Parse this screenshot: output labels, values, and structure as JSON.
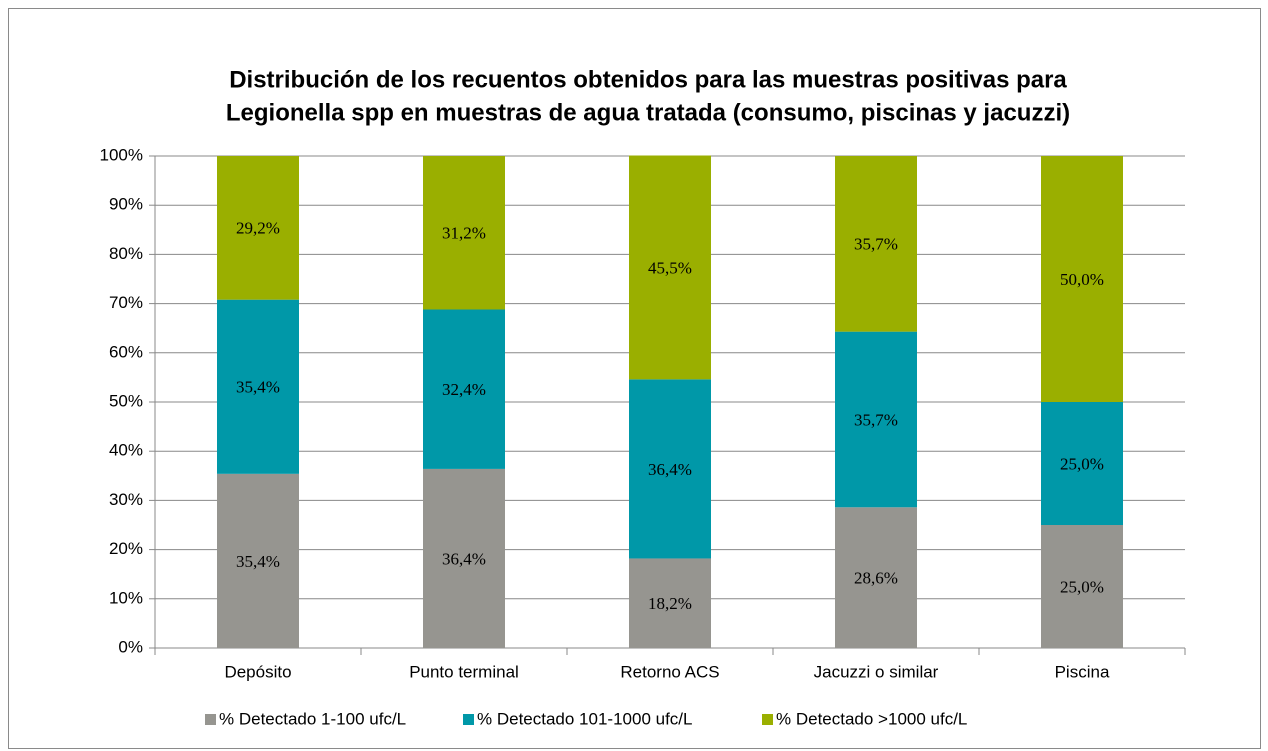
{
  "chart_data": {
    "type": "stacked_bar",
    "title": [
      "Distribución de los recuentos obtenidos para las muestras positivas para",
      "Legionella spp en muestras de agua tratada (consumo, piscinas y jacuzzi)"
    ],
    "categories": [
      "Depósito",
      "Punto terminal",
      "Retorno ACS",
      "Jacuzzi o similar",
      "Piscina"
    ],
    "series": [
      {
        "name": "% Detectado 1-100 ufc/L",
        "color": "#969590",
        "values": [
          35.4,
          36.4,
          18.2,
          28.6,
          25.0
        ],
        "value_labels": [
          "35,4%",
          "36,4%",
          "18,2%",
          "28,6%",
          "25,0%"
        ]
      },
      {
        "name": "% Detectado 101-1000 ufc/L",
        "color": "#0098a8",
        "values": [
          35.4,
          32.4,
          36.4,
          35.7,
          25.0
        ],
        "value_labels": [
          "35,4%",
          "32,4%",
          "36,4%",
          "35,7%",
          "25,0%"
        ]
      },
      {
        "name": "% Detectado >1000 ufc/L",
        "color": "#9aaf00",
        "values": [
          29.2,
          31.2,
          45.5,
          35.7,
          50.0
        ],
        "value_labels": [
          "29,2%",
          "31,2%",
          "45,5%",
          "35,7%",
          "50,0%"
        ]
      }
    ],
    "ylim": [
      0,
      100
    ],
    "yticks": [
      {
        "value": 0,
        "label": "0%"
      },
      {
        "value": 10,
        "label": "10%"
      },
      {
        "value": 20,
        "label": "20%"
      },
      {
        "value": 30,
        "label": "30%"
      },
      {
        "value": 40,
        "label": "40%"
      },
      {
        "value": 50,
        "label": "50%"
      },
      {
        "value": 60,
        "label": "60%"
      },
      {
        "value": 70,
        "label": "70%"
      },
      {
        "value": 80,
        "label": "80%"
      },
      {
        "value": 90,
        "label": "90%"
      },
      {
        "value": 100,
        "label": "100%"
      }
    ],
    "grid": true,
    "legend": "bottom"
  }
}
